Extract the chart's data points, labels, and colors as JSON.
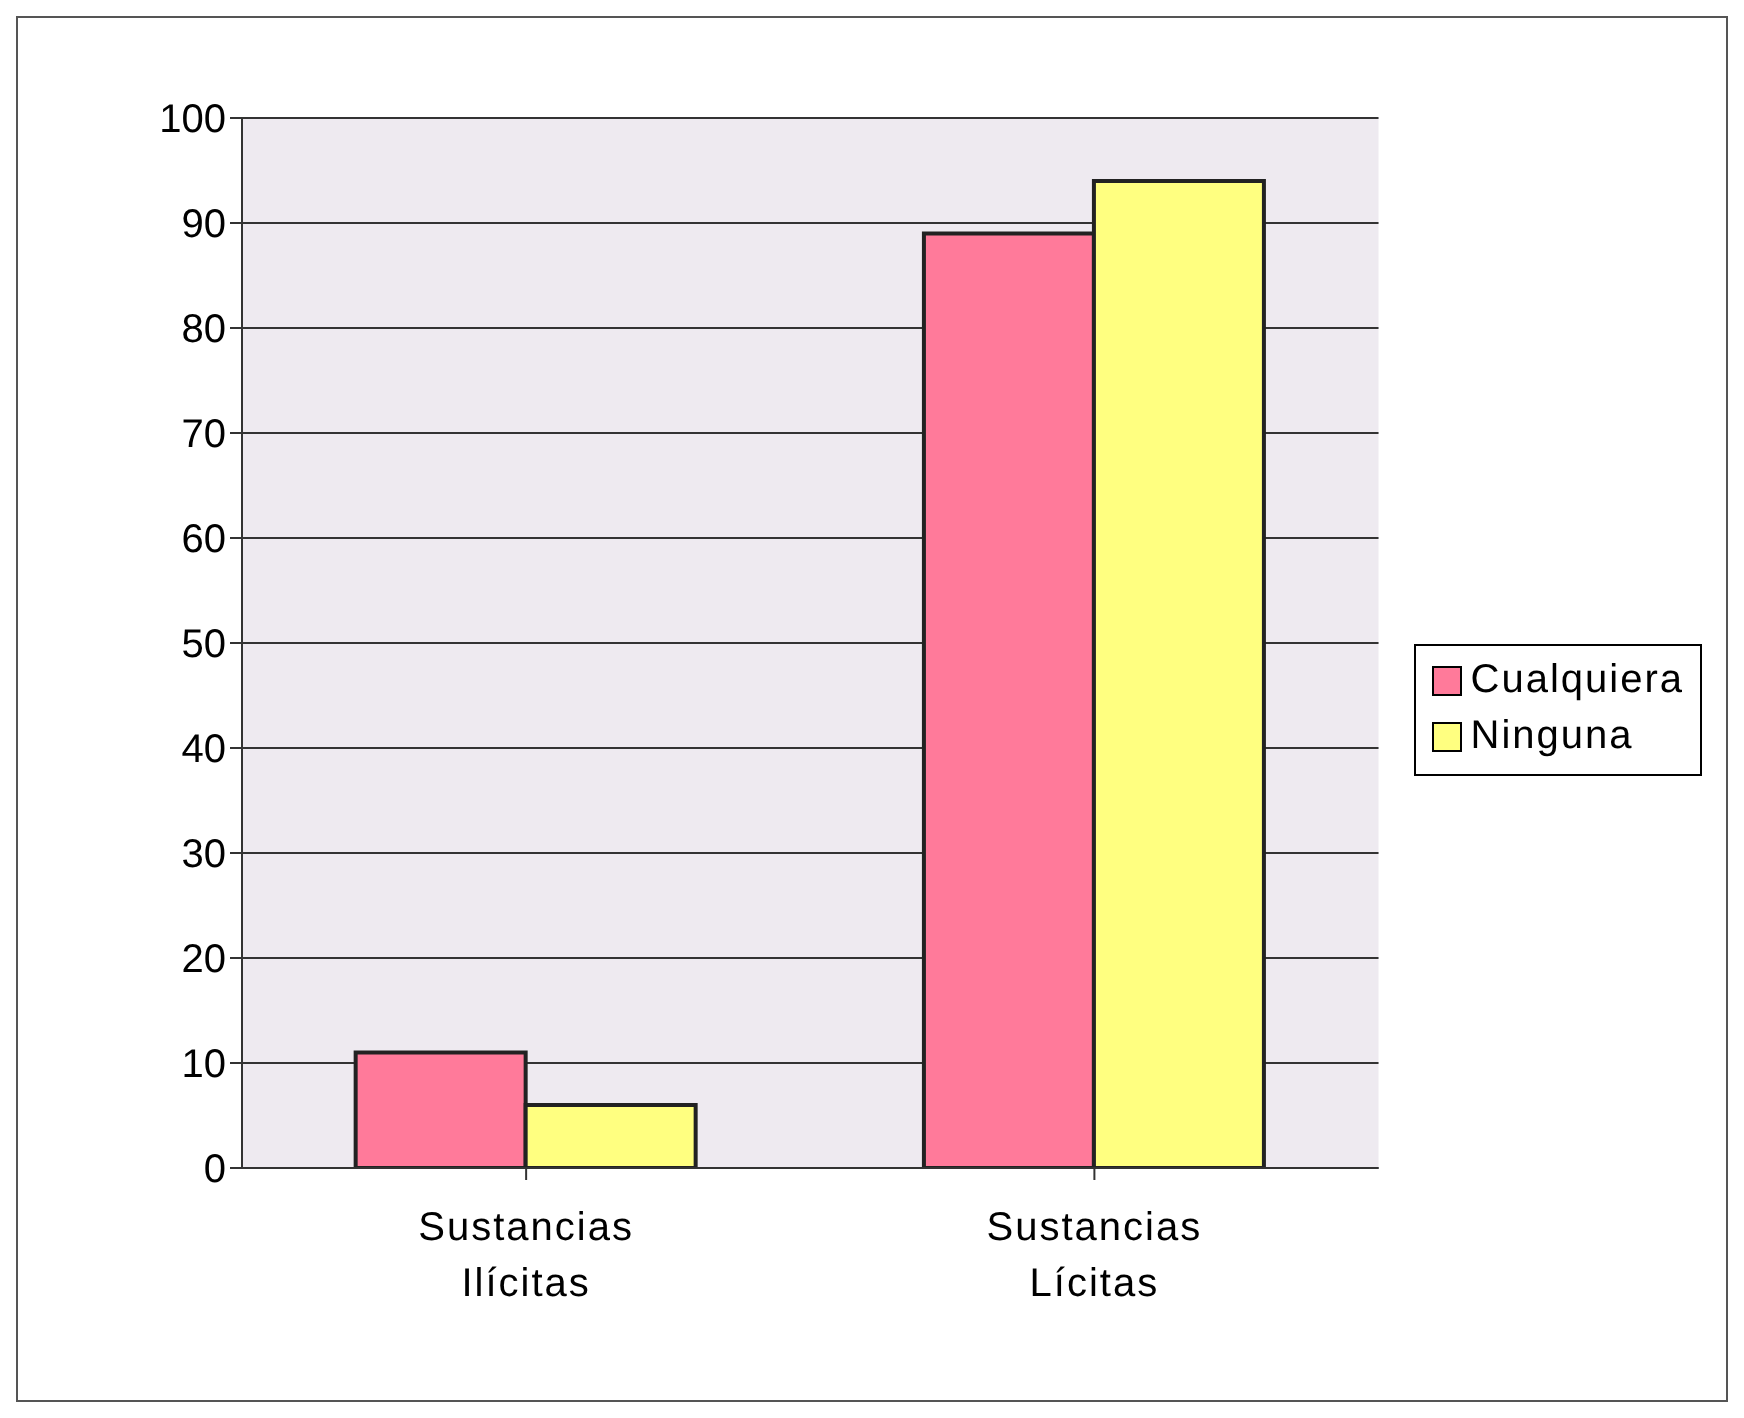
{
  "chart_data": {
    "type": "bar",
    "categories": [
      "Sustancias\nIlícitas",
      "Sustancias\nLícitas"
    ],
    "series": [
      {
        "name": "Cualquiera",
        "color": "#ff7a9a",
        "values": [
          11,
          89
        ]
      },
      {
        "name": "Ninguna",
        "color": "#ffff80",
        "values": [
          6,
          94
        ]
      }
    ],
    "ylim": [
      0,
      100
    ],
    "yticks": [
      0,
      10,
      20,
      30,
      40,
      50,
      60,
      70,
      80,
      90,
      100
    ],
    "grid": "y",
    "legend": "right"
  }
}
